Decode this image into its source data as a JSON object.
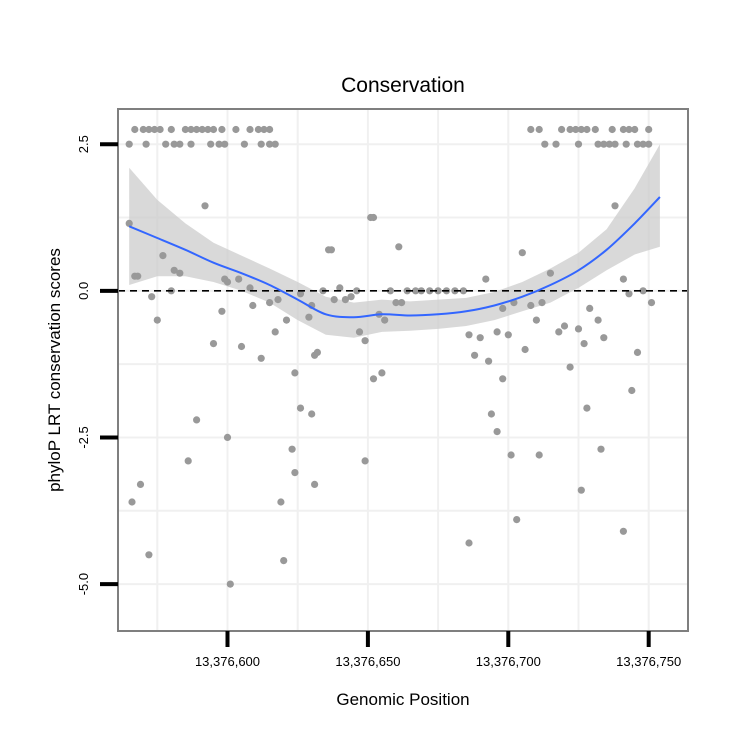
{
  "chart_data": {
    "type": "scatter",
    "title": "Conservation",
    "xlabel": "Genomic Position",
    "ylabel": "phyloP LRT conservation scores",
    "xlim": [
      13376561,
      13376764
    ],
    "ylim": [
      -5.8,
      3.1
    ],
    "x_ticks": [
      13376600,
      13376650,
      13376700,
      13376750
    ],
    "x_tick_labels": [
      "13,376,600",
      "13,376,650",
      "13,376,700",
      "13,376,750"
    ],
    "y_ticks": [
      -5.0,
      -2.5,
      0.0,
      2.5
    ],
    "y_tick_labels": [
      "-5.0",
      "-2.5",
      "0.0",
      "2.5"
    ],
    "reference_line": {
      "y": 0,
      "style": "dashed"
    },
    "points": [
      [
        13376565,
        2.5
      ],
      [
        13376571,
        2.5
      ],
      [
        13376578,
        2.5
      ],
      [
        13376581,
        2.5
      ],
      [
        13376583,
        2.5
      ],
      [
        13376587,
        2.5
      ],
      [
        13376594,
        2.5
      ],
      [
        13376597,
        2.5
      ],
      [
        13376599,
        2.5
      ],
      [
        13376606,
        2.5
      ],
      [
        13376612,
        2.5
      ],
      [
        13376615,
        2.5
      ],
      [
        13376617,
        2.5
      ],
      [
        13376567,
        2.75
      ],
      [
        13376570,
        2.75
      ],
      [
        13376572,
        2.75
      ],
      [
        13376574,
        2.75
      ],
      [
        13376576,
        2.75
      ],
      [
        13376580,
        2.75
      ],
      [
        13376585,
        2.75
      ],
      [
        13376587,
        2.75
      ],
      [
        13376589,
        2.75
      ],
      [
        13376591,
        2.75
      ],
      [
        13376593,
        2.75
      ],
      [
        13376595,
        2.75
      ],
      [
        13376598,
        2.75
      ],
      [
        13376603,
        2.75
      ],
      [
        13376608,
        2.75
      ],
      [
        13376611,
        2.75
      ],
      [
        13376613,
        2.75
      ],
      [
        13376615,
        2.75
      ],
      [
        13376713,
        2.5
      ],
      [
        13376717,
        2.5
      ],
      [
        13376725,
        2.5
      ],
      [
        13376732,
        2.5
      ],
      [
        13376734,
        2.5
      ],
      [
        13376736,
        2.5
      ],
      [
        13376738,
        2.5
      ],
      [
        13376742,
        2.5
      ],
      [
        13376746,
        2.5
      ],
      [
        13376748,
        2.5
      ],
      [
        13376750,
        2.5
      ],
      [
        13376708,
        2.75
      ],
      [
        13376711,
        2.75
      ],
      [
        13376719,
        2.75
      ],
      [
        13376722,
        2.75
      ],
      [
        13376724,
        2.75
      ],
      [
        13376726,
        2.75
      ],
      [
        13376728,
        2.75
      ],
      [
        13376731,
        2.75
      ],
      [
        13376737,
        2.75
      ],
      [
        13376741,
        2.75
      ],
      [
        13376743,
        2.75
      ],
      [
        13376745,
        2.75
      ],
      [
        13376750,
        2.75
      ],
      [
        13376565,
        1.15
      ],
      [
        13376567,
        0.25
      ],
      [
        13376568,
        0.25
      ],
      [
        13376573,
        -0.1
      ],
      [
        13376575,
        -0.5
      ],
      [
        13376577,
        0.6
      ],
      [
        13376580,
        0.0
      ],
      [
        13376581,
        0.35
      ],
      [
        13376583,
        0.3
      ],
      [
        13376592,
        1.45
      ],
      [
        13376595,
        -0.9
      ],
      [
        13376598,
        -0.35
      ],
      [
        13376599,
        0.2
      ],
      [
        13376600,
        0.15
      ],
      [
        13376604,
        0.2
      ],
      [
        13376605,
        -0.95
      ],
      [
        13376608,
        0.05
      ],
      [
        13376609,
        -0.25
      ],
      [
        13376612,
        -1.15
      ],
      [
        13376615,
        -0.2
      ],
      [
        13376617,
        -0.7
      ],
      [
        13376618,
        -0.15
      ],
      [
        13376621,
        -0.5
      ],
      [
        13376624,
        -1.4
      ],
      [
        13376626,
        -0.05
      ],
      [
        13376629,
        -0.45
      ],
      [
        13376630,
        -0.25
      ],
      [
        13376631,
        -1.1
      ],
      [
        13376632,
        -1.05
      ],
      [
        13376634,
        0.0
      ],
      [
        13376636,
        0.7
      ],
      [
        13376637,
        0.7
      ],
      [
        13376638,
        -0.15
      ],
      [
        13376640,
        0.05
      ],
      [
        13376642,
        -0.15
      ],
      [
        13376644,
        -0.1
      ],
      [
        13376646,
        0.0
      ],
      [
        13376647,
        -0.7
      ],
      [
        13376649,
        -0.85
      ],
      [
        13376651,
        1.25
      ],
      [
        13376652,
        1.25
      ],
      [
        13376654,
        -0.4
      ],
      [
        13376656,
        -0.5
      ],
      [
        13376658,
        0.0
      ],
      [
        13376660,
        -0.2
      ],
      [
        13376661,
        0.75
      ],
      [
        13376662,
        -0.2
      ],
      [
        13376664,
        0.0
      ],
      [
        13376667,
        0.0
      ],
      [
        13376669,
        0.0
      ],
      [
        13376672,
        0.0
      ],
      [
        13376675,
        0.0
      ],
      [
        13376678,
        0.0
      ],
      [
        13376681,
        0.0
      ],
      [
        13376684,
        0.0
      ],
      [
        13376686,
        -0.75
      ],
      [
        13376688,
        -1.1
      ],
      [
        13376690,
        -0.8
      ],
      [
        13376692,
        0.2
      ],
      [
        13376693,
        -1.2
      ],
      [
        13376696,
        -0.7
      ],
      [
        13376698,
        -0.3
      ],
      [
        13376700,
        -0.75
      ],
      [
        13376702,
        -0.2
      ],
      [
        13376705,
        0.65
      ],
      [
        13376706,
        -1.0
      ],
      [
        13376708,
        -0.25
      ],
      [
        13376710,
        -0.5
      ],
      [
        13376712,
        -0.2
      ],
      [
        13376715,
        0.3
      ],
      [
        13376718,
        -0.7
      ],
      [
        13376720,
        -0.6
      ],
      [
        13376722,
        -1.3
      ],
      [
        13376725,
        -0.65
      ],
      [
        13376727,
        -0.9
      ],
      [
        13376729,
        -0.3
      ],
      [
        13376732,
        -0.5
      ],
      [
        13376734,
        -0.8
      ],
      [
        13376738,
        1.45
      ],
      [
        13376741,
        0.2
      ],
      [
        13376743,
        -0.05
      ],
      [
        13376746,
        -1.05
      ],
      [
        13376748,
        0.0
      ],
      [
        13376751,
        -0.2
      ],
      [
        13376566,
        -3.6
      ],
      [
        13376569,
        -3.3
      ],
      [
        13376572,
        -4.5
      ],
      [
        13376586,
        -2.9
      ],
      [
        13376589,
        -2.2
      ],
      [
        13376600,
        -2.5
      ],
      [
        13376601,
        -5.0
      ],
      [
        13376619,
        -3.6
      ],
      [
        13376620,
        -4.6
      ],
      [
        13376623,
        -2.7
      ],
      [
        13376624,
        -3.1
      ],
      [
        13376626,
        -2.0
      ],
      [
        13376630,
        -2.1
      ],
      [
        13376631,
        -3.3
      ],
      [
        13376649,
        -2.9
      ],
      [
        13376652,
        -1.5
      ],
      [
        13376655,
        -1.4
      ],
      [
        13376686,
        -4.3
      ],
      [
        13376694,
        -2.1
      ],
      [
        13376696,
        -2.4
      ],
      [
        13376698,
        -1.5
      ],
      [
        13376701,
        -2.8
      ],
      [
        13376703,
        -3.9
      ],
      [
        13376711,
        -2.8
      ],
      [
        13376726,
        -3.4
      ],
      [
        13376728,
        -2.0
      ],
      [
        13376733,
        -2.7
      ],
      [
        13376741,
        -4.1
      ],
      [
        13376744,
        -1.7
      ]
    ],
    "smooth_line": {
      "color": "#3366ff",
      "x": [
        13376565,
        13376575,
        13376585,
        13376595,
        13376605,
        13376615,
        13376625,
        13376635,
        13376645,
        13376655,
        13376665,
        13376675,
        13376685,
        13376695,
        13376705,
        13376715,
        13376725,
        13376735,
        13376745,
        13376754
      ],
      "y": [
        1.1,
        0.9,
        0.7,
        0.48,
        0.3,
        0.1,
        -0.15,
        -0.4,
        -0.45,
        -0.4,
        -0.42,
        -0.4,
        -0.35,
        -0.25,
        -0.1,
        0.1,
        0.35,
        0.7,
        1.15,
        1.6
      ]
    },
    "confidence_band": {
      "color": "#cccccc",
      "x": [
        13376565,
        13376575,
        13376585,
        13376595,
        13376605,
        13376615,
        13376625,
        13376635,
        13376645,
        13376655,
        13376665,
        13376675,
        13376685,
        13376695,
        13376705,
        13376715,
        13376725,
        13376735,
        13376745,
        13376754
      ],
      "upper": [
        2.1,
        1.55,
        1.15,
        0.82,
        0.6,
        0.38,
        0.15,
        -0.1,
        -0.2,
        -0.15,
        -0.18,
        -0.15,
        -0.12,
        -0.02,
        0.15,
        0.38,
        0.65,
        1.05,
        1.75,
        2.5
      ],
      "lower": [
        0.1,
        0.25,
        0.25,
        0.15,
        0.0,
        -0.2,
        -0.5,
        -0.75,
        -0.8,
        -0.7,
        -0.68,
        -0.65,
        -0.6,
        -0.5,
        -0.35,
        -0.2,
        0.05,
        0.35,
        0.62,
        0.75
      ]
    }
  }
}
